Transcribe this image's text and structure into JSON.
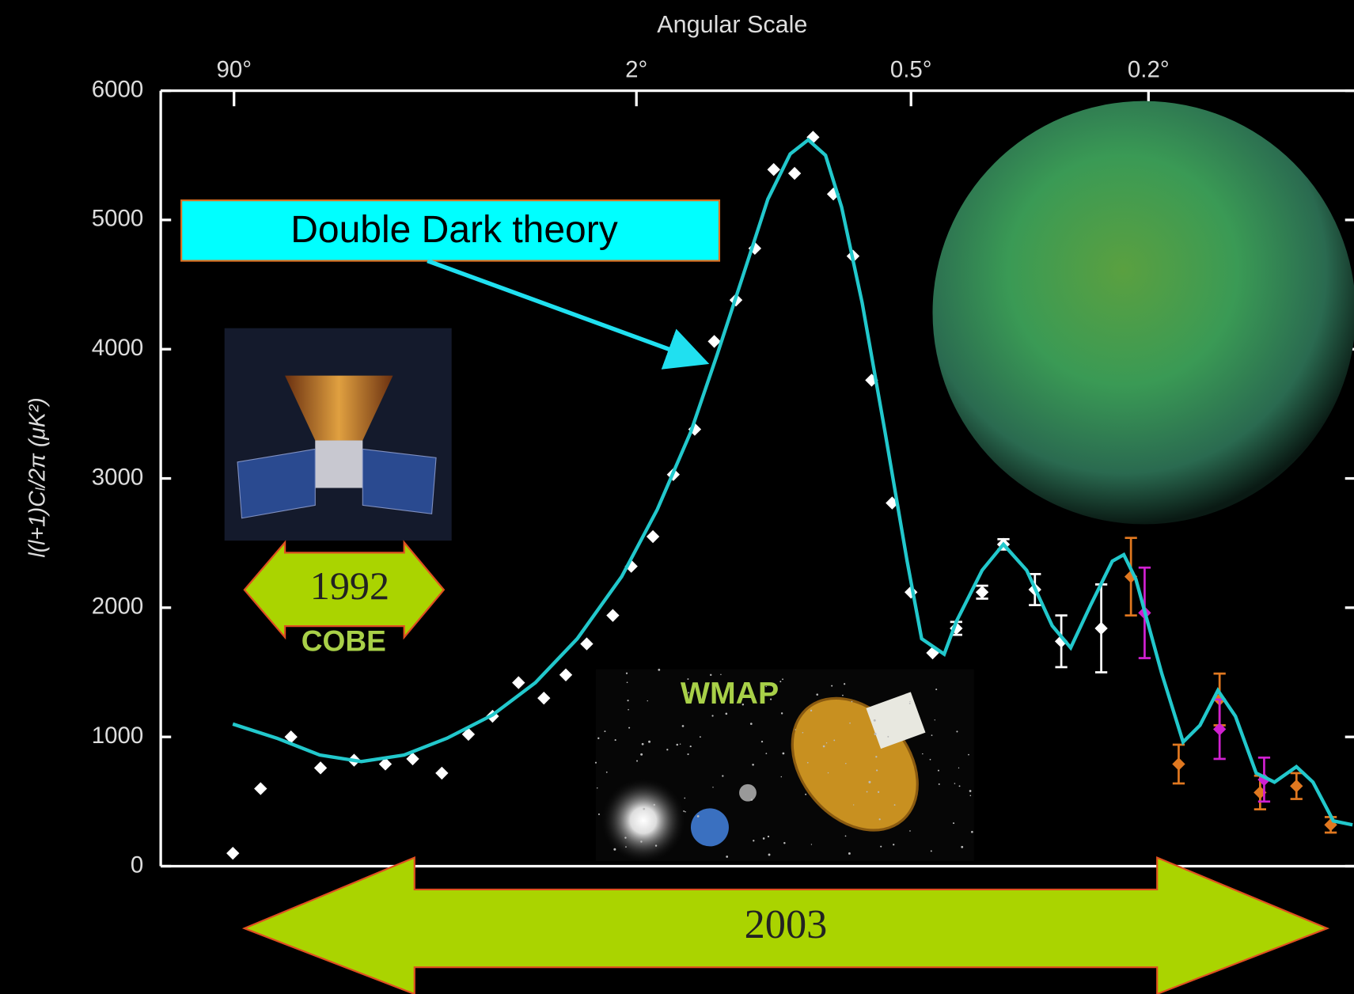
{
  "chart_data": {
    "type": "line",
    "title": "Angular Scale",
    "y_label": "l(l+1)Cₗ/2π (μK²)",
    "xlim": [
      180,
      0.09
    ],
    "xticks": [
      {
        "value": 90,
        "label": "90°"
      },
      {
        "value": 2,
        "label": "2°"
      },
      {
        "value": 0.5,
        "label": "0.5°"
      },
      {
        "value": 0.2,
        "label": "0.2°"
      }
    ],
    "ylim": [
      0,
      6000
    ],
    "yticks": [
      0,
      1000,
      2000,
      3000,
      4000,
      5000,
      6000
    ],
    "series": [
      {
        "type": "line",
        "color": "#22c8cc",
        "x": [
          91,
          60,
          40,
          27,
          18,
          12,
          7.8,
          5.2,
          3.5,
          2.3,
          1.8,
          1.52,
          1.33,
          1.17,
          1.03,
          0.92,
          0.84,
          0.77,
          0.71,
          0.64,
          0.57,
          0.51,
          0.48,
          0.44,
          0.42,
          0.38,
          0.35,
          0.32,
          0.29,
          0.27,
          0.25,
          0.23,
          0.22,
          0.21,
          0.19,
          0.175,
          0.164,
          0.153,
          0.143,
          0.132,
          0.123,
          0.113,
          0.106,
          0.098,
          0.091
        ],
        "values": [
          1100,
          990,
          860,
          810,
          860,
          990,
          1170,
          1420,
          1760,
          2240,
          2760,
          3360,
          3960,
          4560,
          5160,
          5510,
          5620,
          5500,
          5100,
          4360,
          3360,
          2360,
          1760,
          1640,
          1890,
          2290,
          2490,
          2290,
          1860,
          1690,
          2020,
          2360,
          2410,
          2220,
          1490,
          960,
          1090,
          1360,
          1160,
          720,
          650,
          770,
          650,
          350,
          320
        ]
      },
      {
        "type": "scatter",
        "color": "#ffffff",
        "x": [
          91,
          70,
          52.5,
          39.7,
          28.9,
          21.5,
          16.6,
          12.6,
          9.8,
          7.8,
          6.1,
          4.8,
          3.9,
          3.2,
          2.5,
          2.1,
          1.84,
          1.66,
          1.49,
          1.35,
          1.21,
          1.1,
          1.0,
          0.9,
          0.82,
          0.74,
          0.67,
          0.61,
          0.55,
          0.5,
          0.46,
          0.42,
          0.38,
          0.35,
          0.31,
          0.28,
          0.24
        ],
        "values": [
          100,
          600,
          1000,
          760,
          820,
          790,
          830,
          720,
          1020,
          1160,
          1420,
          1300,
          1480,
          1720,
          1940,
          2320,
          2550,
          3030,
          3380,
          4060,
          4380,
          4780,
          5390,
          5360,
          5640,
          5200,
          4720,
          3760,
          2810,
          2120,
          1650,
          1840,
          2120,
          2490,
          2140,
          1740,
          1840
        ],
        "errors": [
          null,
          null,
          null,
          null,
          null,
          null,
          null,
          null,
          null,
          null,
          null,
          null,
          null,
          null,
          null,
          null,
          null,
          null,
          null,
          null,
          null,
          null,
          null,
          null,
          null,
          null,
          null,
          null,
          null,
          null,
          null,
          50,
          50,
          40,
          120,
          200,
          340
        ]
      },
      {
        "type": "scatter",
        "color": "#e07820",
        "x": [
          0.214,
          0.178,
          0.152,
          0.13,
          0.113,
          0.099
        ],
        "values": [
          2240,
          790,
          1290,
          570,
          620,
          320
        ],
        "errors": [
          300,
          150,
          200,
          130,
          100,
          60
        ]
      },
      {
        "type": "scatter",
        "color": "#d020d0",
        "x": [
          0.203,
          0.152,
          0.128
        ],
        "values": [
          1960,
          1060,
          670
        ],
        "errors": [
          350,
          230,
          170
        ]
      }
    ],
    "annotations": {
      "theory": "Double Dark theory",
      "cobe_year": "1992",
      "cobe": "COBE",
      "wmap": "WMAP",
      "wmap_year": "2003"
    }
  }
}
